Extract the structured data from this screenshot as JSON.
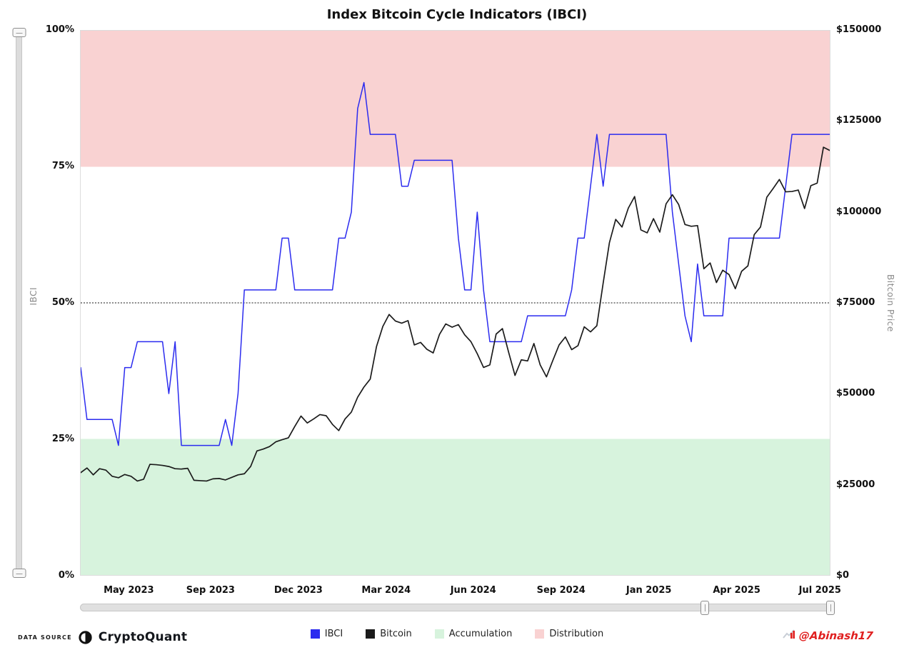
{
  "chart": {
    "title": "Index Bitcoin Cycle Indicators (IBCI)"
  },
  "chart_data": {
    "type": "line",
    "title": "Index Bitcoin Cycle Indicators (IBCI)",
    "x_unit": "weekly points, Apr 2023 - Jul 2025",
    "x_ticks": [
      {
        "label": "May 2023",
        "f": 0.065
      },
      {
        "label": "Sep 2023",
        "f": 0.174
      },
      {
        "label": "Dec 2023",
        "f": 0.291
      },
      {
        "label": "Mar 2024",
        "f": 0.408
      },
      {
        "label": "Jun 2024",
        "f": 0.524
      },
      {
        "label": "Sep 2024",
        "f": 0.641
      },
      {
        "label": "Jan 2025",
        "f": 0.758
      },
      {
        "label": "Apr 2025",
        "f": 0.875
      },
      {
        "label": "Jul 2025",
        "f": 0.986
      }
    ],
    "left_axis": {
      "title": "IBCI",
      "min": 0,
      "max": 100,
      "ticks": [
        {
          "label": "0%",
          "v": 0
        },
        {
          "label": "25%",
          "v": 25
        },
        {
          "label": "50%",
          "v": 50
        },
        {
          "label": "75%",
          "v": 75
        },
        {
          "label": "100%",
          "v": 100
        }
      ]
    },
    "right_axis": {
      "title": "Bitcoin Price",
      "min": 0,
      "max": 150,
      "unit_note": "series values in thousands of USD",
      "ticks": [
        {
          "label": "$0",
          "v": 0
        },
        {
          "label": "$25000",
          "v": 25
        },
        {
          "label": "$50000",
          "v": 50
        },
        {
          "label": "$75000",
          "v": 75
        },
        {
          "label": "$100000",
          "v": 100
        },
        {
          "label": "$125000",
          "v": 125
        },
        {
          "label": "$150000",
          "v": 150
        }
      ]
    },
    "bands": [
      {
        "label": "Distribution",
        "from": 75,
        "to": 100,
        "color": "#f9d2d2"
      },
      {
        "label": "Accumulation",
        "from": 0,
        "to": 25,
        "color": "#d7f3dd"
      }
    ],
    "midline_pct": 50,
    "series": [
      {
        "name": "IBCI",
        "axis": "left",
        "color": "#2b2bef",
        "values": [
          38.1,
          28.57,
          28.57,
          28.57,
          28.57,
          28.57,
          23.81,
          38.1,
          38.1,
          42.86,
          42.86,
          42.86,
          42.86,
          42.86,
          33.33,
          42.86,
          23.81,
          23.81,
          23.81,
          23.81,
          23.81,
          23.81,
          23.81,
          28.57,
          23.81,
          33.33,
          52.38,
          52.38,
          52.38,
          52.38,
          52.38,
          52.38,
          61.9,
          61.9,
          52.38,
          52.38,
          52.38,
          52.38,
          52.38,
          52.38,
          52.38,
          61.9,
          61.9,
          66.67,
          85.71,
          90.48,
          80.95,
          80.95,
          80.95,
          80.95,
          80.95,
          71.43,
          71.43,
          76.19,
          76.19,
          76.19,
          76.19,
          76.19,
          76.19,
          76.19,
          61.9,
          52.38,
          52.38,
          66.67,
          52.38,
          42.86,
          42.86,
          42.86,
          42.86,
          42.86,
          42.86,
          47.62,
          47.62,
          47.62,
          47.62,
          47.62,
          47.62,
          47.62,
          52.38,
          61.9,
          61.9,
          71.43,
          80.95,
          71.43,
          80.95,
          80.95,
          80.95,
          80.95,
          80.95,
          80.95,
          80.95,
          80.95,
          80.95,
          80.95,
          66.67,
          57.14,
          47.62,
          42.86,
          57.14,
          47.62,
          47.62,
          47.62,
          47.62,
          61.9,
          61.9,
          61.9,
          61.9,
          61.9,
          61.9,
          61.9,
          61.9,
          61.9,
          71.43,
          80.95,
          80.95,
          80.95,
          80.95,
          80.95,
          80.95,
          80.95
        ]
      },
      {
        "name": "Bitcoin",
        "axis": "right",
        "color": "#1b1b1b",
        "values": [
          28.2,
          29.5,
          27.6,
          29.3,
          28.9,
          27.2,
          26.8,
          27.7,
          27.2,
          25.9,
          26.4,
          30.5,
          30.4,
          30.2,
          29.9,
          29.3,
          29.2,
          29.4,
          26.1,
          26.0,
          25.9,
          26.5,
          26.6,
          26.2,
          26.9,
          27.6,
          27.9,
          29.9,
          34.2,
          34.7,
          35.4,
          36.7,
          37.3,
          37.8,
          40.9,
          43.8,
          41.9,
          43.0,
          44.2,
          43.9,
          41.5,
          39.8,
          43.0,
          44.9,
          49.0,
          51.8,
          54.0,
          63.0,
          68.5,
          71.8,
          70.0,
          69.4,
          70.1,
          63.4,
          64.1,
          62.2,
          61.2,
          66.3,
          69.2,
          68.3,
          69.0,
          66.2,
          64.3,
          61.0,
          57.2,
          57.9,
          66.4,
          67.9,
          61.3,
          55.0,
          59.3,
          59.0,
          63.8,
          57.9,
          54.6,
          59.1,
          63.4,
          65.6,
          62.1,
          63.2,
          68.4,
          67.0,
          68.7,
          80.4,
          91.6,
          98.0,
          95.9,
          101.1,
          104.3,
          95.1,
          94.3,
          98.2,
          94.5,
          102.3,
          104.8,
          102.1,
          96.6,
          96.1,
          96.3,
          84.4,
          86.0,
          80.6,
          84.0,
          82.8,
          78.9,
          83.7,
          85.2,
          93.8,
          95.9,
          104.1,
          106.5,
          109.0,
          105.6,
          105.7,
          106.1,
          101.0,
          107.3,
          108.0,
          117.9,
          117.0
        ]
      }
    ]
  },
  "legend": {
    "items": [
      {
        "label": "IBCI",
        "color": "#2b2bef"
      },
      {
        "label": "Bitcoin",
        "color": "#1b1b1b"
      },
      {
        "label": "Accumulation",
        "color": "#d7f3dd"
      },
      {
        "label": "Distribution",
        "color": "#f9d2d2"
      }
    ]
  },
  "scrollbars": {
    "horizontal_handle_fractions": [
      0.83,
      0.997
    ]
  },
  "footer": {
    "data_source_label": "DATA SOURCE",
    "brand": "CryptoQuant",
    "watermark": "@Abinash17"
  }
}
